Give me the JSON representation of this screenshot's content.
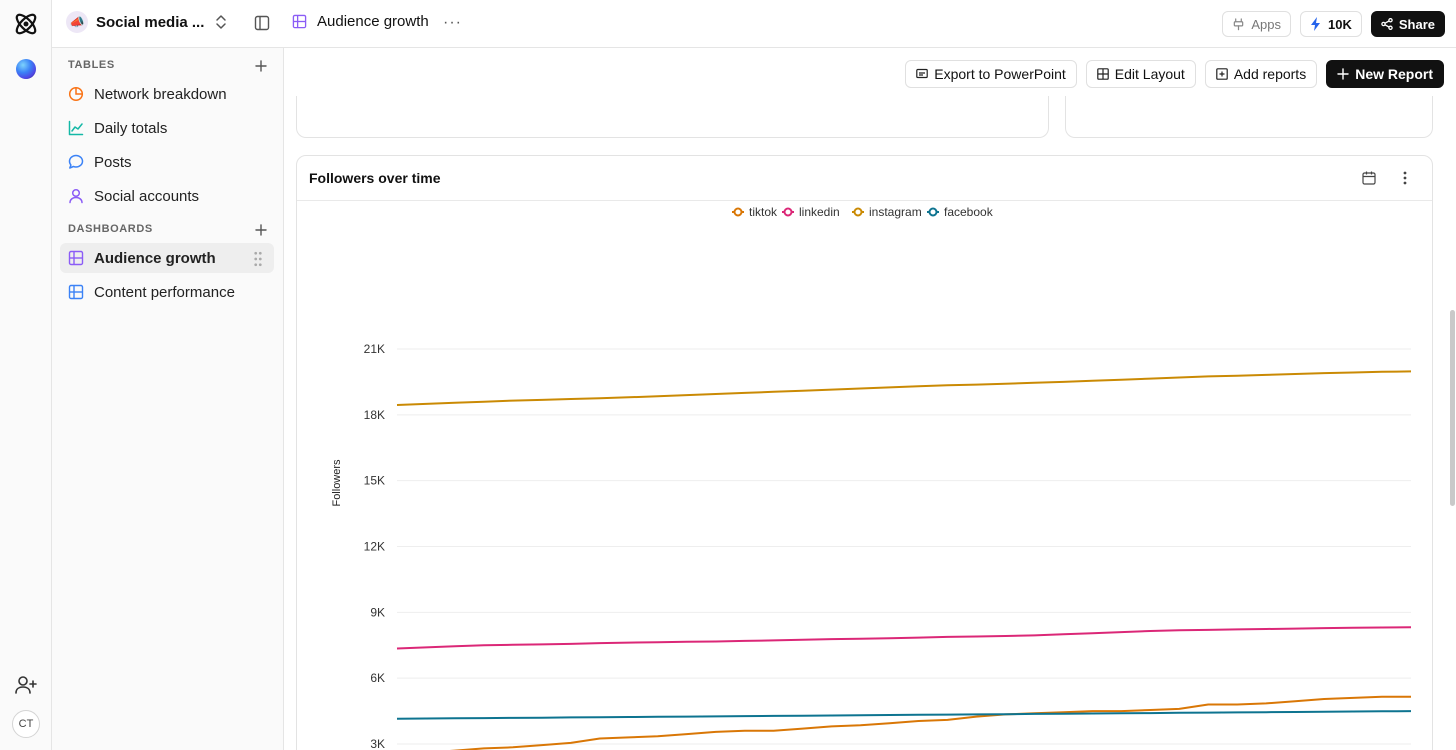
{
  "workspace": {
    "name": "Social media ...",
    "emoji": "📣"
  },
  "breadcrumb": {
    "label": "Audience growth"
  },
  "topbar": {
    "apps_label": "Apps",
    "credits_label": "10K",
    "share_label": "Share"
  },
  "user": {
    "initials": "CT"
  },
  "sidebar": {
    "tables_heading": "TABLES",
    "tables": [
      {
        "label": "Network breakdown",
        "icon": "pie-chart-icon",
        "color": "#f97316"
      },
      {
        "label": "Daily totals",
        "icon": "line-chart-icon",
        "color": "#14b8a6"
      },
      {
        "label": "Posts",
        "icon": "chat-bubble-icon",
        "color": "#3b82f6"
      },
      {
        "label": "Social accounts",
        "icon": "person-icon",
        "color": "#8b5cf6"
      }
    ],
    "dashboards_heading": "DASHBOARDS",
    "dashboards": [
      {
        "label": "Audience growth",
        "icon": "grid-icon",
        "color": "#8b5cf6",
        "active": true
      },
      {
        "label": "Content performance",
        "icon": "grid-icon",
        "color": "#3b82f6",
        "active": false
      }
    ]
  },
  "actions": {
    "export_label": "Export to PowerPoint",
    "edit_layout_label": "Edit Layout",
    "add_reports_label": "Add reports",
    "new_report_label": "New Report"
  },
  "chart_card": {
    "title": "Followers over time"
  },
  "chart_data": {
    "type": "line",
    "title": "Followers over time",
    "ylabel": "Followers",
    "xlabel": "",
    "ylim": [
      2500,
      21000
    ],
    "yticks": [
      3000,
      6000,
      9000,
      12000,
      15000,
      18000,
      21000
    ],
    "ytick_labels": [
      "3K",
      "6K",
      "9K",
      "12K",
      "15K",
      "18K",
      "21K"
    ],
    "grid": true,
    "legend_position": "top-center",
    "x": [
      0,
      1,
      2,
      3,
      4,
      5,
      6,
      7,
      8,
      9,
      10,
      11,
      12,
      13,
      14,
      15,
      16,
      17,
      18,
      19,
      20,
      21,
      22,
      23,
      24,
      25,
      26,
      27,
      28,
      29,
      30,
      31,
      32,
      33,
      34,
      35
    ],
    "series": [
      {
        "name": "tiktok",
        "color": "#d97706",
        "values": [
          2550,
          2600,
          2700,
          2800,
          2850,
          2950,
          3050,
          3250,
          3300,
          3350,
          3450,
          3550,
          3600,
          3600,
          3700,
          3800,
          3850,
          3950,
          4050,
          4100,
          4250,
          4350,
          4400,
          4450,
          4500,
          4500,
          4550,
          4600,
          4800,
          4800,
          4850,
          4950,
          5050,
          5100,
          5150,
          5150
        ]
      },
      {
        "name": "linkedin",
        "color": "#db2777",
        "values": [
          7350,
          7400,
          7450,
          7500,
          7520,
          7540,
          7560,
          7600,
          7620,
          7640,
          7660,
          7670,
          7700,
          7720,
          7750,
          7780,
          7800,
          7820,
          7850,
          7880,
          7900,
          7920,
          7950,
          8000,
          8050,
          8100,
          8150,
          8180,
          8200,
          8220,
          8240,
          8260,
          8280,
          8300,
          8310,
          8320
        ]
      },
      {
        "name": "instagram",
        "color": "#ca8a04",
        "values": [
          18450,
          18500,
          18550,
          18600,
          18650,
          18680,
          18720,
          18760,
          18800,
          18850,
          18900,
          18950,
          19000,
          19050,
          19100,
          19150,
          19200,
          19250,
          19300,
          19350,
          19380,
          19420,
          19460,
          19500,
          19550,
          19600,
          19650,
          19700,
          19750,
          19780,
          19820,
          19860,
          19900,
          19930,
          19960,
          19980
        ]
      },
      {
        "name": "facebook",
        "color": "#0e7490",
        "values": [
          4150,
          4160,
          4170,
          4180,
          4190,
          4200,
          4210,
          4220,
          4230,
          4240,
          4250,
          4260,
          4270,
          4280,
          4290,
          4300,
          4310,
          4320,
          4330,
          4340,
          4350,
          4360,
          4370,
          4380,
          4390,
          4400,
          4410,
          4420,
          4430,
          4440,
          4450,
          4460,
          4470,
          4480,
          4490,
          4500
        ]
      }
    ]
  }
}
